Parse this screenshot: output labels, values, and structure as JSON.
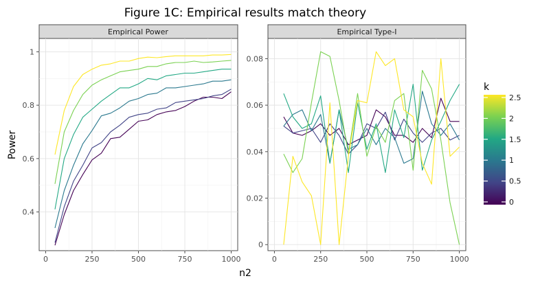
{
  "figure": {
    "title": "Figure 1C: Empirical results match theory",
    "xlabel": "n2",
    "ylabel": "Power"
  },
  "legend": {
    "title": "k",
    "placement": "right",
    "ticks": [
      "2.5",
      "2",
      "1.5",
      "1",
      "0.5",
      "0"
    ],
    "colors": [
      "#fde725",
      "#7ad151",
      "#22a884",
      "#2a788e",
      "#414487",
      "#440154"
    ]
  },
  "chart_data": [
    {
      "type": "line",
      "panel": "Empirical Power",
      "grid": true,
      "xlim": [
        -35,
        1035
      ],
      "ylim": [
        0.255,
        1.05
      ],
      "xticks": [
        "0",
        "250",
        "500",
        "750",
        "1000"
      ],
      "yticks": [
        "0.4",
        "0.6",
        "0.8",
        "1"
      ],
      "x": [
        50,
        100,
        150,
        200,
        250,
        300,
        350,
        400,
        450,
        500,
        550,
        600,
        650,
        700,
        750,
        800,
        850,
        900,
        950,
        1000
      ],
      "series": [
        {
          "k": 0,
          "color": "#440154",
          "values": [
            0.275,
            0.39,
            0.48,
            0.54,
            0.595,
            0.62,
            0.675,
            0.68,
            0.71,
            0.74,
            0.745,
            0.765,
            0.775,
            0.78,
            0.795,
            0.815,
            0.83,
            0.83,
            0.825,
            0.85
          ]
        },
        {
          "k": 0.5,
          "color": "#414487",
          "values": [
            0.285,
            0.42,
            0.515,
            0.575,
            0.64,
            0.66,
            0.7,
            0.725,
            0.755,
            0.765,
            0.77,
            0.785,
            0.79,
            0.81,
            0.815,
            0.82,
            0.825,
            0.835,
            0.84,
            0.86
          ]
        },
        {
          "k": 1,
          "color": "#2a788e",
          "values": [
            0.34,
            0.48,
            0.575,
            0.655,
            0.705,
            0.76,
            0.77,
            0.79,
            0.815,
            0.825,
            0.84,
            0.845,
            0.865,
            0.865,
            0.87,
            0.875,
            0.88,
            0.89,
            0.89,
            0.895
          ]
        },
        {
          "k": 1.5,
          "color": "#22a884",
          "values": [
            0.41,
            0.6,
            0.69,
            0.755,
            0.785,
            0.815,
            0.84,
            0.865,
            0.865,
            0.88,
            0.9,
            0.895,
            0.91,
            0.915,
            0.92,
            0.92,
            0.925,
            0.93,
            0.935,
            0.935
          ]
        },
        {
          "k": 2,
          "color": "#7ad151",
          "values": [
            0.505,
            0.7,
            0.78,
            0.84,
            0.875,
            0.895,
            0.91,
            0.925,
            0.93,
            0.935,
            0.945,
            0.945,
            0.955,
            0.96,
            0.96,
            0.965,
            0.96,
            0.962,
            0.965,
            0.968
          ]
        },
        {
          "k": 2.5,
          "color": "#fde725",
          "values": [
            0.615,
            0.78,
            0.87,
            0.915,
            0.935,
            0.95,
            0.955,
            0.965,
            0.965,
            0.975,
            0.98,
            0.978,
            0.982,
            0.985,
            0.985,
            0.985,
            0.985,
            0.988,
            0.988,
            0.99
          ]
        }
      ]
    },
    {
      "type": "line",
      "panel": "Empirical Type-I",
      "grid": true,
      "xlim": [
        -35,
        1035
      ],
      "ylim": [
        -0.0026,
        0.0887
      ],
      "xticks": [
        "0",
        "250",
        "500",
        "750",
        "1000"
      ],
      "yticks": [
        "0",
        "0.02",
        "0.04",
        "0.06",
        "0.08"
      ],
      "x": [
        50,
        100,
        150,
        200,
        250,
        300,
        350,
        400,
        450,
        500,
        550,
        600,
        650,
        700,
        750,
        800,
        850,
        900,
        950,
        1000
      ],
      "series": [
        {
          "k": 0,
          "color": "#440154",
          "values": [
            0.055,
            0.048,
            0.047,
            0.049,
            0.052,
            0.047,
            0.05,
            0.043,
            0.045,
            0.047,
            0.058,
            0.055,
            0.047,
            0.047,
            0.044,
            0.05,
            0.046,
            0.063,
            0.053,
            0.053
          ]
        },
        {
          "k": 0.5,
          "color": "#414487",
          "values": [
            0.051,
            0.048,
            0.049,
            0.05,
            0.044,
            0.052,
            0.047,
            0.039,
            0.043,
            0.052,
            0.05,
            0.057,
            0.045,
            0.054,
            0.048,
            0.044,
            0.048,
            0.05,
            0.045,
            0.047
          ]
        },
        {
          "k": 1,
          "color": "#2a788e",
          "values": [
            0.051,
            0.056,
            0.058,
            0.049,
            0.056,
            0.035,
            0.058,
            0.041,
            0.043,
            0.05,
            0.043,
            0.05,
            0.046,
            0.035,
            0.037,
            0.066,
            0.052,
            0.047,
            0.052,
            0.045
          ]
        },
        {
          "k": 1.5,
          "color": "#22a884",
          "values": [
            0.065,
            0.055,
            0.05,
            0.052,
            0.064,
            0.035,
            0.058,
            0.031,
            0.061,
            0.041,
            0.052,
            0.031,
            0.058,
            0.046,
            0.069,
            0.032,
            0.045,
            0.053,
            0.062,
            0.069
          ]
        },
        {
          "k": 2,
          "color": "#7ad151",
          "values": [
            0.039,
            0.031,
            0.037,
            0.061,
            0.083,
            0.081,
            0.062,
            0.039,
            0.065,
            0.038,
            0.051,
            0.044,
            0.062,
            0.065,
            0.032,
            0.075,
            0.067,
            0.045,
            0.018,
            0.0
          ]
        },
        {
          "k": 2.5,
          "color": "#fde725",
          "values": [
            0.0,
            0.038,
            0.027,
            0.021,
            0.0,
            0.061,
            0.0,
            0.038,
            0.062,
            0.061,
            0.083,
            0.077,
            0.08,
            0.058,
            0.055,
            0.035,
            0.026,
            0.08,
            0.038,
            0.042
          ]
        }
      ]
    }
  ]
}
